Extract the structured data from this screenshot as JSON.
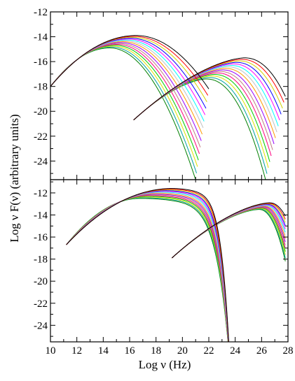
{
  "figure": {
    "xlabel": "Log  ν  (Hz)",
    "ylabel": "Log ν F(ν)  (arbitrary units)",
    "x_ticks": [
      10,
      12,
      14,
      16,
      18,
      20,
      22,
      24,
      26,
      28
    ]
  },
  "colors": [
    "#000000",
    "#ff0000",
    "#d4d400",
    "#0000ff",
    "#ff00ff",
    "#00ffff",
    "#c0c0c0",
    "#ff9900",
    "#9900ff",
    "#c08080",
    "#ff0080",
    "#00cc00",
    "#e0e000",
    "#00a0a0",
    "#008000"
  ],
  "chart_data": [
    {
      "type": "line",
      "panel": "top",
      "xlim": [
        10,
        28
      ],
      "ylim": [
        -25.5,
        -12
      ],
      "y_ticks": [
        -12,
        -14,
        -16,
        -18,
        -20,
        -22,
        -24
      ],
      "n_curves": 15,
      "series": [
        {
          "component": "synchrotron",
          "x_start": 10,
          "x_start_y": -18,
          "peak_x": [
            16.5,
            14.5
          ],
          "peak_y": [
            -13.9,
            -14.9
          ],
          "end_x": [
            22,
            21
          ],
          "end_y": [
            -18.2,
            -25.5
          ]
        },
        {
          "component": "inverse-compton",
          "x_start": 16.3,
          "x_start_y": -20.7,
          "peak_x": [
            24.7,
            21.8
          ],
          "peak_y": [
            -15.7,
            -17.4
          ],
          "end_x": [
            27.8,
            26.3
          ],
          "end_y": [
            -18.8,
            -25.5
          ]
        }
      ]
    },
    {
      "type": "line",
      "panel": "bottom",
      "xlim": [
        10,
        28
      ],
      "ylim": [
        -25.5,
        -10.8
      ],
      "y_ticks": [
        -12,
        -14,
        -16,
        -18,
        -20,
        -22,
        -24
      ],
      "n_curves": 15,
      "series": [
        {
          "component": "synchrotron",
          "x_start": 11.2,
          "x_start_y": -16.7,
          "peak_x": [
            19.2,
            16.8
          ],
          "peak_y": [
            -11.6,
            -12.5
          ],
          "cutoff_x": 23.6
        },
        {
          "component": "inverse-compton",
          "x_start": 19.2,
          "x_start_y": -17.9,
          "peak_x": [
            26.6,
            25.8
          ],
          "peak_y": [
            -12.9,
            -13.5
          ],
          "end_x": [
            27.8,
            27.8
          ],
          "end_y": [
            -14.1,
            -18.2
          ]
        }
      ]
    }
  ]
}
